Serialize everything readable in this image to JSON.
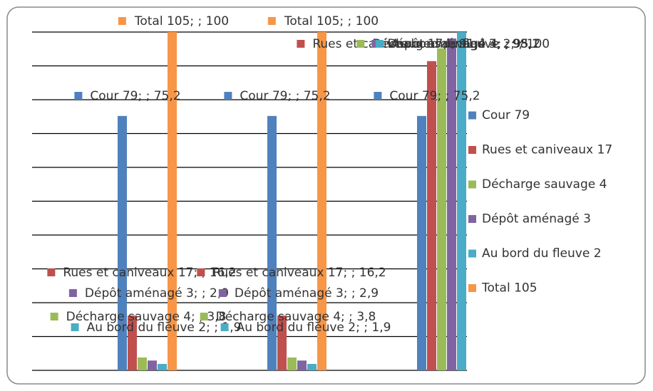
{
  "chart_data": {
    "type": "bar",
    "categories": [
      null,
      null,
      null
    ],
    "series": [
      {
        "name": "Cour 79",
        "color": "#4f81bd",
        "values": [
          75.2,
          75.2,
          75.2
        ],
        "value_labels": [
          "Cour 79; ; 75,2",
          "Cour 79; ; 75,2",
          "Cour 79; ; 75,2"
        ]
      },
      {
        "name": "Rues et caniveaux 17",
        "color": "#c0504d",
        "values": [
          16.2,
          16.2,
          91.4
        ],
        "value_labels": [
          "Rues et caniveaux 17; ; 16,2",
          "Rues et caniveaux 17; ; 16,2",
          "Rues et caniveaux 17; ; 91,4"
        ]
      },
      {
        "name": "Décharge sauvage 4",
        "color": "#9bbb59",
        "values": [
          3.8,
          3.8,
          95.2
        ],
        "value_labels": [
          "Décharge sauvage 4; ; 3,8",
          "Décharge sauvage 4; ; 3,8",
          "Décharge sauvage 4; ; 95,2"
        ]
      },
      {
        "name": "Dépôt aménagé 3",
        "color": "#8064a2",
        "values": [
          2.9,
          2.9,
          98.1
        ],
        "value_labels": [
          "Dépôt aménagé 3; ; 2,9",
          "Dépôt aménagé 3; ; 2,9",
          "Dépôt aménagé 3; ; 98,1"
        ]
      },
      {
        "name": "Au bord du fleuve 2",
        "color": "#4bacc6",
        "values": [
          1.9,
          1.9,
          100
        ],
        "value_labels": [
          "Au bord du fleuve 2; ; 1,9",
          "Au bord du fleuve 2; ; 1,9",
          "Au bord du fleuve 2; ; 100"
        ]
      },
      {
        "name": "Total 105",
        "color": "#f79646",
        "values": [
          100,
          100,
          null
        ],
        "value_labels": [
          "Total 105; ; 100",
          "Total 105; ; 100",
          null
        ]
      }
    ],
    "ylim": [
      0,
      100
    ],
    "yticks": [
      0,
      10,
      20,
      30,
      40,
      50,
      60,
      70,
      80,
      90,
      100
    ],
    "grid": true,
    "legend": "right"
  }
}
